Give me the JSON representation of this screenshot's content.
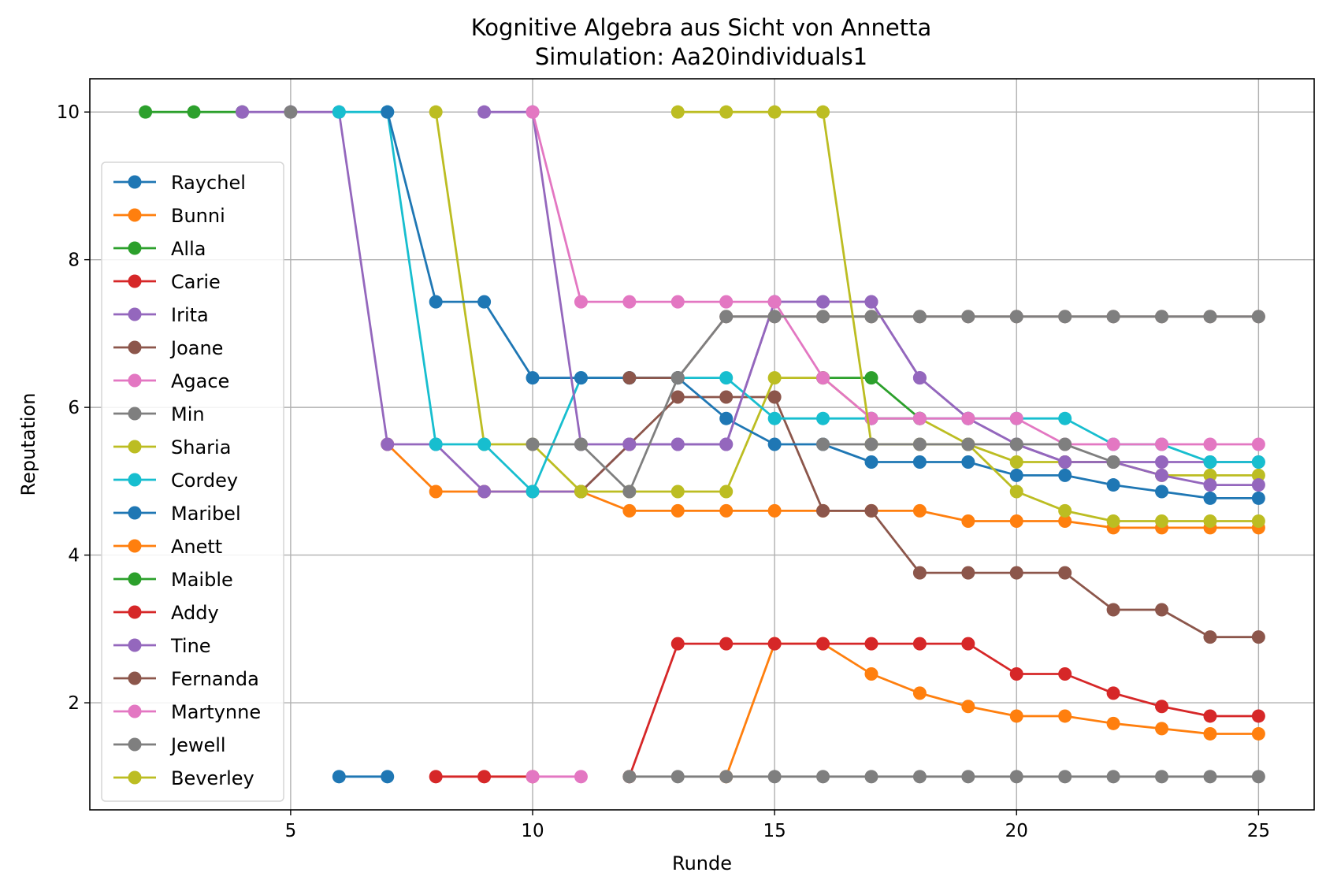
{
  "chart_data": {
    "type": "line",
    "title": "Kognitive Algebra aus Sicht von Annetta",
    "subtitle": "Simulation: Aa20individuals1",
    "xlabel": "Runde",
    "ylabel": "Reputation",
    "xlim": [
      0.85,
      26.15
    ],
    "ylim": [
      0.55,
      10.45
    ],
    "xticks": [
      5,
      10,
      15,
      20,
      25
    ],
    "yticks": [
      2,
      4,
      6,
      8,
      10
    ],
    "grid": true,
    "legend_position": "center-left",
    "series": [
      {
        "name": "Raychel",
        "color": "#1f77b4",
        "x": [
          6,
          7
        ],
        "y": [
          1,
          1
        ]
      },
      {
        "name": "Bunni",
        "color": "#ff7f0e",
        "x": [
          7,
          8,
          9,
          10,
          11,
          12,
          13,
          14,
          15,
          16,
          17,
          18,
          19,
          20,
          21,
          22,
          23,
          24,
          25
        ],
        "y": [
          5.5,
          4.86,
          4.86,
          4.86,
          4.86,
          4.6,
          4.6,
          4.6,
          4.6,
          4.6,
          4.6,
          4.6,
          4.46,
          4.46,
          4.46,
          4.37,
          4.37,
          4.37,
          4.37
        ]
      },
      {
        "name": "Alla",
        "color": "#2ca02c",
        "x": [
          2,
          3,
          4
        ],
        "y": [
          10,
          10,
          10
        ]
      },
      {
        "name": "Carie",
        "color": "#d62728",
        "x": [
          8,
          9,
          10
        ],
        "y": [
          1,
          1,
          1
        ]
      },
      {
        "name": "Irita",
        "color": "#9467bd",
        "x": [
          4,
          5,
          6,
          7,
          8,
          9,
          10,
          11,
          12,
          13,
          14,
          15,
          16,
          17,
          18,
          19,
          20,
          21,
          22,
          23,
          24,
          25
        ],
        "y": [
          10,
          10,
          10,
          5.5,
          5.5,
          4.86,
          4.86,
          4.86,
          5.5,
          5.5,
          5.5,
          7.43,
          7.43,
          7.43,
          6.4,
          5.85,
          5.5,
          5.26,
          5.26,
          5.26,
          5.26,
          5.26
        ]
      },
      {
        "name": "Joane",
        "color": "#8c564b",
        "x": [
          11,
          12,
          13,
          14,
          15,
          16,
          17,
          18,
          19,
          20,
          21,
          22,
          23,
          24,
          25
        ],
        "y": [
          4.86,
          5.5,
          6.14,
          6.14,
          6.14,
          4.6,
          4.6,
          3.76,
          3.76,
          3.76,
          3.76,
          3.26,
          3.26,
          2.89,
          2.89
        ]
      },
      {
        "name": "Agace",
        "color": "#e377c2",
        "x": [
          10,
          11
        ],
        "y": [
          1,
          1
        ]
      },
      {
        "name": "Min",
        "color": "#7f7f7f",
        "x": [
          5
        ],
        "y": [
          10
        ]
      },
      {
        "name": "Sharia",
        "color": "#bcbd22",
        "x": [
          8,
          9,
          10,
          11,
          12,
          13,
          14,
          15,
          16,
          17,
          18,
          19,
          20,
          21,
          22,
          23,
          24,
          25
        ],
        "y": [
          10,
          5.5,
          5.5,
          4.86,
          4.86,
          4.86,
          4.86,
          6.4,
          6.4,
          5.85,
          5.85,
          5.5,
          5.26,
          5.26,
          5.26,
          5.08,
          5.08,
          5.08
        ]
      },
      {
        "name": "Cordey",
        "color": "#17becf",
        "x": [
          6,
          7,
          8,
          9,
          10,
          11,
          12,
          13,
          14,
          15,
          16,
          17,
          18,
          19,
          20,
          21,
          22,
          23,
          24,
          25
        ],
        "y": [
          10,
          10,
          5.5,
          5.5,
          4.86,
          6.4,
          6.4,
          6.4,
          6.4,
          5.85,
          5.85,
          5.85,
          5.85,
          5.85,
          5.85,
          5.85,
          5.5,
          5.5,
          5.26,
          5.26
        ]
      },
      {
        "name": "Maribel",
        "color": "#1f77b4",
        "x": [
          7,
          8,
          9,
          10,
          11,
          12,
          13,
          14,
          15,
          16,
          17,
          18,
          19,
          20,
          21,
          22,
          23,
          24,
          25
        ],
        "y": [
          10,
          7.43,
          7.43,
          6.4,
          6.4,
          6.4,
          6.4,
          5.85,
          5.5,
          5.5,
          5.26,
          5.26,
          5.26,
          5.08,
          5.08,
          4.95,
          4.86,
          4.77,
          4.77
        ]
      },
      {
        "name": "Anett",
        "color": "#ff7f0e",
        "x": [
          14,
          15,
          16,
          17,
          18,
          19,
          20,
          21,
          22,
          23,
          24,
          25
        ],
        "y": [
          1,
          2.8,
          2.8,
          2.39,
          2.13,
          1.95,
          1.82,
          1.82,
          1.72,
          1.65,
          1.58,
          1.58
        ]
      },
      {
        "name": "Maible",
        "color": "#2ca02c",
        "x": [
          16,
          17,
          18
        ],
        "y": [
          6.4,
          6.4,
          5.85
        ]
      },
      {
        "name": "Addy",
        "color": "#d62728",
        "x": [
          12,
          13,
          14,
          15,
          16,
          17,
          18,
          19,
          20,
          21,
          22,
          23,
          24,
          25
        ],
        "y": [
          1,
          2.8,
          2.8,
          2.8,
          2.8,
          2.8,
          2.8,
          2.8,
          2.39,
          2.39,
          2.13,
          1.95,
          1.82,
          1.82
        ]
      },
      {
        "name": "Tine",
        "color": "#9467bd",
        "x": [
          9,
          10,
          11,
          12,
          13,
          14,
          15,
          16,
          17,
          18,
          19,
          20,
          21,
          22,
          23,
          24,
          25
        ],
        "y": [
          10,
          10,
          5.5,
          5.5,
          5.5,
          5.5,
          7.43,
          7.43,
          7.43,
          6.4,
          5.85,
          5.5,
          5.26,
          5.26,
          5.08,
          4.95,
          4.95
        ]
      },
      {
        "name": "Fernanda",
        "color": "#8c564b",
        "x": [
          12,
          13,
          14,
          15,
          16,
          17,
          18,
          19,
          20,
          21,
          22,
          23,
          24,
          25
        ],
        "y": [
          6.4,
          6.4,
          7.23,
          7.23,
          7.23,
          7.23,
          7.23,
          7.23,
          7.23,
          7.23,
          7.23,
          7.23,
          7.23,
          7.23
        ]
      },
      {
        "name": "Martynne",
        "color": "#e377c2",
        "x": [
          10,
          11,
          12,
          13,
          14,
          15,
          16,
          17,
          18,
          19,
          20,
          21,
          22,
          23,
          24,
          25
        ],
        "y": [
          10,
          7.43,
          7.43,
          7.43,
          7.43,
          7.43,
          6.4,
          5.85,
          5.85,
          5.85,
          5.85,
          5.5,
          5.5,
          5.5,
          5.5,
          5.5
        ]
      },
      {
        "name": "Jewell",
        "color": "#7f7f7f",
        "x": [
          10,
          11,
          12,
          13,
          14,
          15,
          16,
          17,
          18,
          19,
          20,
          21,
          22,
          23,
          24,
          25
        ],
        "y": [
          5.5,
          5.5,
          4.86,
          6.4,
          7.23,
          7.23,
          7.23,
          7.23,
          7.23,
          7.23,
          7.23,
          7.23,
          7.23,
          7.23,
          7.23,
          7.23
        ]
      },
      {
        "name": "Beverley",
        "color": "#bcbd22",
        "x": [
          13,
          14,
          15,
          16,
          17,
          18,
          19,
          20,
          21,
          22,
          23,
          24,
          25
        ],
        "y": [
          10,
          10,
          10,
          10,
          5.5,
          5.5,
          5.5,
          4.86,
          4.6,
          4.46,
          4.46,
          4.46,
          4.46
        ]
      },
      {
        "name": "",
        "color": "#7f7f7f",
        "x": [
          12,
          13,
          14,
          15,
          16,
          17,
          18,
          19,
          20,
          21,
          22,
          23,
          24,
          25
        ],
        "y": [
          1,
          1,
          1,
          1,
          1,
          1,
          1,
          1,
          1,
          1,
          1,
          1,
          1,
          1
        ]
      },
      {
        "name": "",
        "color": "#7f7f7f",
        "x": [
          16,
          17,
          18,
          19,
          20,
          21,
          22
        ],
        "y": [
          5.5,
          5.5,
          5.5,
          5.5,
          5.5,
          5.5,
          5.26
        ]
      }
    ]
  }
}
